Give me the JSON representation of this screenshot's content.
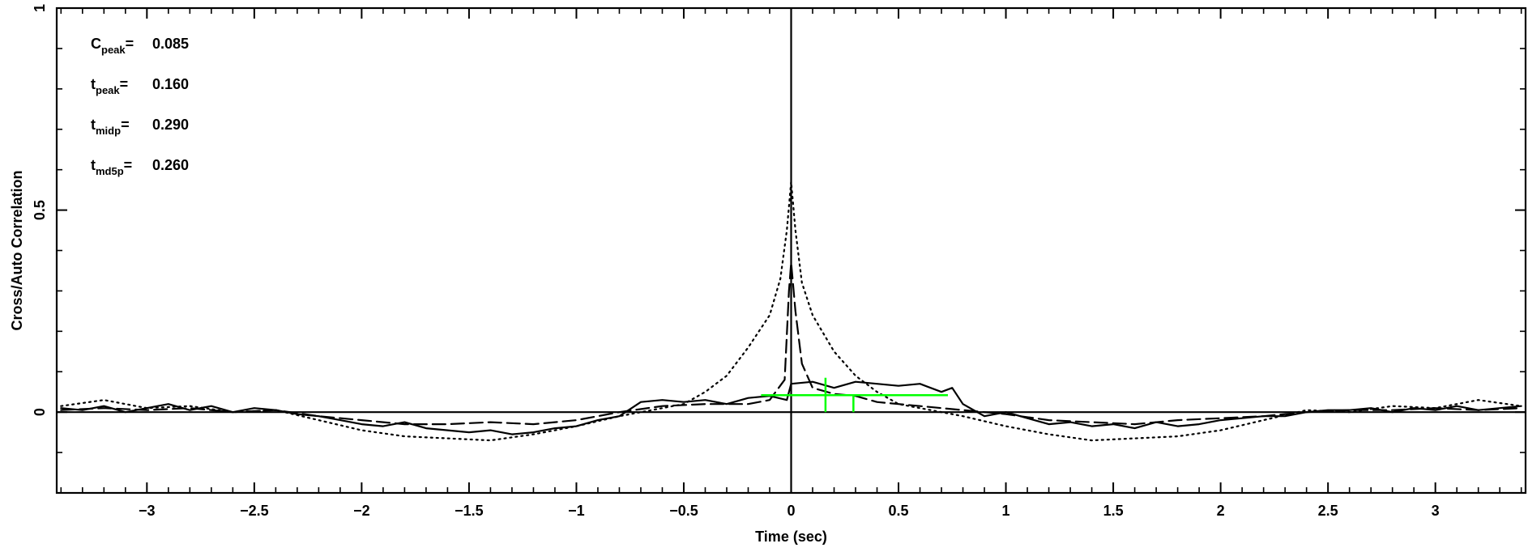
{
  "chart_data": {
    "type": "line",
    "title": "",
    "xlabel": "Time (sec)",
    "ylabel": "Cross/Auto Correlation",
    "xlim": [
      -3.42,
      3.42
    ],
    "ylim": [
      -0.2,
      1.0
    ],
    "x_ticks": [
      {
        "value": -3,
        "label": "−3"
      },
      {
        "value": -2.5,
        "label": "−2.5"
      },
      {
        "value": -2,
        "label": "−2"
      },
      {
        "value": -1.5,
        "label": "−1.5"
      },
      {
        "value": -1,
        "label": "−1"
      },
      {
        "value": -0.5,
        "label": "−0.5"
      },
      {
        "value": 0,
        "label": "0"
      },
      {
        "value": 0.5,
        "label": "0.5"
      },
      {
        "value": 1,
        "label": "1"
      },
      {
        "value": 1.5,
        "label": "1.5"
      },
      {
        "value": 2,
        "label": "2"
      },
      {
        "value": 2.5,
        "label": "2.5"
      },
      {
        "value": 3,
        "label": "3"
      }
    ],
    "y_ticks": [
      {
        "value": 0,
        "label": "0"
      },
      {
        "value": 0.5,
        "label": "0.5"
      },
      {
        "value": 1,
        "label": "1"
      }
    ],
    "grid": false,
    "reference_lines": {
      "x": 0,
      "y": 0
    },
    "series": [
      {
        "style": "solid",
        "color": "#000000",
        "points": [
          [
            -3.4,
            0.01
          ],
          [
            -3.3,
            0.005
          ],
          [
            -3.2,
            0.015
          ],
          [
            -3.1,
            0.0
          ],
          [
            -3.0,
            0.01
          ],
          [
            -2.9,
            0.02
          ],
          [
            -2.8,
            0.005
          ],
          [
            -2.7,
            0.015
          ],
          [
            -2.6,
            0.0
          ],
          [
            -2.5,
            0.01
          ],
          [
            -2.4,
            0.005
          ],
          [
            -2.3,
            -0.005
          ],
          [
            -2.2,
            -0.01
          ],
          [
            -2.1,
            -0.02
          ],
          [
            -2.0,
            -0.03
          ],
          [
            -1.9,
            -0.035
          ],
          [
            -1.8,
            -0.025
          ],
          [
            -1.7,
            -0.04
          ],
          [
            -1.6,
            -0.045
          ],
          [
            -1.5,
            -0.05
          ],
          [
            -1.4,
            -0.045
          ],
          [
            -1.3,
            -0.055
          ],
          [
            -1.2,
            -0.05
          ],
          [
            -1.1,
            -0.04
          ],
          [
            -1.0,
            -0.035
          ],
          [
            -0.9,
            -0.02
          ],
          [
            -0.8,
            -0.01
          ],
          [
            -0.7,
            0.025
          ],
          [
            -0.6,
            0.03
          ],
          [
            -0.5,
            0.025
          ],
          [
            -0.4,
            0.03
          ],
          [
            -0.3,
            0.02
          ],
          [
            -0.2,
            0.035
          ],
          [
            -0.1,
            0.04
          ],
          [
            -0.02,
            0.03
          ],
          [
            0.0,
            0.07
          ],
          [
            0.1,
            0.075
          ],
          [
            0.2,
            0.06
          ],
          [
            0.3,
            0.075
          ],
          [
            0.4,
            0.07
          ],
          [
            0.5,
            0.065
          ],
          [
            0.6,
            0.07
          ],
          [
            0.7,
            0.05
          ],
          [
            0.75,
            0.06
          ],
          [
            0.8,
            0.02
          ],
          [
            0.9,
            -0.01
          ],
          [
            1.0,
            0.0
          ],
          [
            1.1,
            -0.015
          ],
          [
            1.2,
            -0.03
          ],
          [
            1.3,
            -0.025
          ],
          [
            1.4,
            -0.035
          ],
          [
            1.5,
            -0.03
          ],
          [
            1.6,
            -0.04
          ],
          [
            1.7,
            -0.025
          ],
          [
            1.8,
            -0.035
          ],
          [
            1.9,
            -0.03
          ],
          [
            2.0,
            -0.02
          ],
          [
            2.1,
            -0.015
          ],
          [
            2.2,
            -0.01
          ],
          [
            2.3,
            -0.01
          ],
          [
            2.4,
            0.0
          ],
          [
            2.5,
            0.005
          ],
          [
            2.6,
            0.005
          ],
          [
            2.7,
            0.01
          ],
          [
            2.8,
            0.0
          ],
          [
            2.9,
            0.01
          ],
          [
            3.0,
            0.005
          ],
          [
            3.1,
            0.015
          ],
          [
            3.2,
            0.005
          ],
          [
            3.3,
            0.01
          ],
          [
            3.4,
            0.015
          ]
        ]
      },
      {
        "style": "dashed",
        "color": "#000000",
        "points": [
          [
            -3.4,
            0.005
          ],
          [
            -3.2,
            0.01
          ],
          [
            -3.0,
            0.005
          ],
          [
            -2.8,
            0.01
          ],
          [
            -2.6,
            0.0
          ],
          [
            -2.4,
            0.005
          ],
          [
            -2.2,
            -0.01
          ],
          [
            -2.0,
            -0.02
          ],
          [
            -1.8,
            -0.03
          ],
          [
            -1.6,
            -0.03
          ],
          [
            -1.4,
            -0.025
          ],
          [
            -1.2,
            -0.03
          ],
          [
            -1.0,
            -0.02
          ],
          [
            -0.8,
            0.0
          ],
          [
            -0.6,
            0.015
          ],
          [
            -0.4,
            0.02
          ],
          [
            -0.2,
            0.02
          ],
          [
            -0.1,
            0.03
          ],
          [
            -0.03,
            0.08
          ],
          [
            -0.01,
            0.3
          ],
          [
            0.0,
            0.37
          ],
          [
            0.02,
            0.25
          ],
          [
            0.05,
            0.12
          ],
          [
            0.1,
            0.06
          ],
          [
            0.2,
            0.045
          ],
          [
            0.3,
            0.04
          ],
          [
            0.4,
            0.025
          ],
          [
            0.5,
            0.02
          ],
          [
            0.6,
            0.015
          ],
          [
            0.8,
            0.005
          ],
          [
            1.0,
            -0.005
          ],
          [
            1.2,
            -0.02
          ],
          [
            1.4,
            -0.025
          ],
          [
            1.6,
            -0.03
          ],
          [
            1.8,
            -0.02
          ],
          [
            2.0,
            -0.015
          ],
          [
            2.2,
            -0.01
          ],
          [
            2.4,
            0.0
          ],
          [
            2.6,
            0.005
          ],
          [
            2.8,
            0.005
          ],
          [
            3.0,
            0.01
          ],
          [
            3.2,
            0.005
          ],
          [
            3.4,
            0.01
          ]
        ]
      },
      {
        "style": "dotted",
        "color": "#000000",
        "points": [
          [
            -3.4,
            0.015
          ],
          [
            -3.2,
            0.03
          ],
          [
            -3.0,
            0.01
          ],
          [
            -2.8,
            0.015
          ],
          [
            -2.6,
            0.0
          ],
          [
            -2.4,
            0.005
          ],
          [
            -2.2,
            -0.02
          ],
          [
            -2.0,
            -0.045
          ],
          [
            -1.8,
            -0.06
          ],
          [
            -1.6,
            -0.065
          ],
          [
            -1.4,
            -0.07
          ],
          [
            -1.2,
            -0.055
          ],
          [
            -1.0,
            -0.035
          ],
          [
            -0.8,
            -0.01
          ],
          [
            -0.6,
            0.01
          ],
          [
            -0.5,
            0.02
          ],
          [
            -0.4,
            0.05
          ],
          [
            -0.3,
            0.09
          ],
          [
            -0.2,
            0.16
          ],
          [
            -0.1,
            0.24
          ],
          [
            -0.05,
            0.33
          ],
          [
            -0.02,
            0.45
          ],
          [
            0.0,
            0.57
          ],
          [
            0.02,
            0.45
          ],
          [
            0.05,
            0.32
          ],
          [
            0.1,
            0.24
          ],
          [
            0.2,
            0.15
          ],
          [
            0.3,
            0.09
          ],
          [
            0.4,
            0.05
          ],
          [
            0.5,
            0.02
          ],
          [
            0.6,
            0.01
          ],
          [
            0.8,
            -0.01
          ],
          [
            1.0,
            -0.035
          ],
          [
            1.2,
            -0.055
          ],
          [
            1.4,
            -0.07
          ],
          [
            1.6,
            -0.065
          ],
          [
            1.8,
            -0.06
          ],
          [
            2.0,
            -0.045
          ],
          [
            2.2,
            -0.02
          ],
          [
            2.4,
            0.005
          ],
          [
            2.6,
            0.0
          ],
          [
            2.8,
            0.015
          ],
          [
            3.0,
            0.01
          ],
          [
            3.2,
            0.03
          ],
          [
            3.4,
            0.015
          ]
        ]
      }
    ],
    "markers": {
      "color": "#00ff00",
      "horizontal_bar": {
        "x_start": -0.14,
        "x_end": 0.73,
        "y": 0.042
      },
      "vertical_ticks": [
        {
          "x": 0.16,
          "y_from": 0.0,
          "y_to": 0.085
        },
        {
          "x": 0.29,
          "y_from": 0.0,
          "y_to": 0.042
        }
      ]
    },
    "annotations": [
      {
        "base": "C",
        "sub": "peak",
        "equals": "=",
        "value": "0.085"
      },
      {
        "base": "t",
        "sub": "peak",
        "equals": "=",
        "value": "0.160"
      },
      {
        "base": "t",
        "sub": "midp",
        "equals": "=",
        "value": "0.290"
      },
      {
        "base": "t",
        "sub": "md5p",
        "equals": "=",
        "value": "0.260"
      }
    ]
  }
}
